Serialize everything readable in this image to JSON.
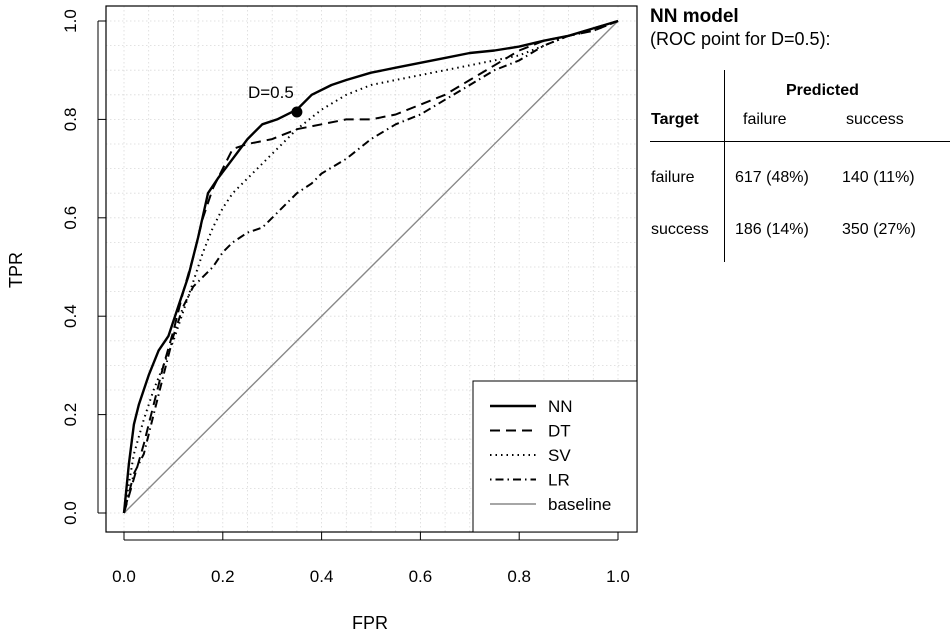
{
  "chart_data": {
    "type": "line",
    "xlabel": "FPR",
    "ylabel": "TPR",
    "xlim": [
      0,
      1
    ],
    "ylim": [
      0,
      1
    ],
    "xticks": [
      "0.0",
      "0.2",
      "0.4",
      "0.6",
      "0.8",
      "1.0"
    ],
    "yticks": [
      "0.0",
      "0.2",
      "0.4",
      "0.6",
      "0.8",
      "1.0"
    ],
    "grid": true,
    "legend_position": "bottom-right",
    "series": [
      {
        "name": "NN",
        "style": "solid",
        "x": [
          0,
          0.01,
          0.02,
          0.03,
          0.05,
          0.07,
          0.09,
          0.11,
          0.13,
          0.15,
          0.17,
          0.19,
          0.22,
          0.25,
          0.28,
          0.31,
          0.35,
          0.38,
          0.42,
          0.45,
          0.5,
          0.55,
          0.6,
          0.65,
          0.7,
          0.75,
          0.8,
          0.85,
          0.9,
          0.95,
          1.0
        ],
        "y": [
          0,
          0.1,
          0.18,
          0.22,
          0.28,
          0.33,
          0.36,
          0.42,
          0.48,
          0.56,
          0.65,
          0.68,
          0.72,
          0.76,
          0.79,
          0.8,
          0.82,
          0.85,
          0.87,
          0.88,
          0.895,
          0.905,
          0.915,
          0.925,
          0.935,
          0.94,
          0.948,
          0.96,
          0.97,
          0.985,
          1.0
        ]
      },
      {
        "name": "DT",
        "style": "dashed",
        "x": [
          0,
          0.02,
          0.04,
          0.06,
          0.08,
          0.1,
          0.12,
          0.14,
          0.16,
          0.18,
          0.2,
          0.22,
          0.25,
          0.3,
          0.35,
          0.4,
          0.45,
          0.5,
          0.55,
          0.6,
          0.65,
          0.7,
          0.75,
          0.8,
          0.85,
          0.9,
          0.95,
          1.0
        ],
        "y": [
          0,
          0.07,
          0.14,
          0.22,
          0.3,
          0.37,
          0.45,
          0.52,
          0.6,
          0.66,
          0.7,
          0.74,
          0.75,
          0.76,
          0.78,
          0.79,
          0.8,
          0.8,
          0.81,
          0.83,
          0.85,
          0.88,
          0.91,
          0.94,
          0.96,
          0.97,
          0.98,
          1.0
        ]
      },
      {
        "name": "SV",
        "style": "dotted",
        "x": [
          0,
          0.02,
          0.04,
          0.06,
          0.08,
          0.1,
          0.12,
          0.14,
          0.16,
          0.18,
          0.2,
          0.22,
          0.25,
          0.3,
          0.35,
          0.4,
          0.45,
          0.5,
          0.55,
          0.6,
          0.65,
          0.7,
          0.75,
          0.8,
          0.85,
          0.9,
          0.95,
          1.0
        ],
        "y": [
          0,
          0.12,
          0.19,
          0.25,
          0.3,
          0.35,
          0.41,
          0.47,
          0.53,
          0.58,
          0.62,
          0.65,
          0.68,
          0.73,
          0.78,
          0.82,
          0.85,
          0.87,
          0.88,
          0.89,
          0.9,
          0.91,
          0.92,
          0.93,
          0.95,
          0.97,
          0.98,
          1.0
        ]
      },
      {
        "name": "LR",
        "style": "dotdash",
        "x": [
          0,
          0.02,
          0.04,
          0.06,
          0.08,
          0.1,
          0.12,
          0.14,
          0.16,
          0.18,
          0.2,
          0.22,
          0.25,
          0.28,
          0.3,
          0.33,
          0.35,
          0.38,
          0.4,
          0.45,
          0.5,
          0.55,
          0.6,
          0.65,
          0.7,
          0.75,
          0.8,
          0.85,
          0.9,
          0.95,
          1.0
        ],
        "y": [
          0,
          0.08,
          0.12,
          0.2,
          0.28,
          0.36,
          0.42,
          0.46,
          0.48,
          0.5,
          0.53,
          0.55,
          0.57,
          0.58,
          0.6,
          0.63,
          0.65,
          0.67,
          0.69,
          0.72,
          0.76,
          0.79,
          0.81,
          0.84,
          0.87,
          0.9,
          0.92,
          0.95,
          0.97,
          0.985,
          1.0
        ]
      },
      {
        "name": "baseline",
        "style": "solid-gray",
        "color": "#888888",
        "x": [
          0,
          1
        ],
        "y": [
          0,
          1
        ]
      }
    ],
    "annotations": [
      {
        "text": "D=0.5",
        "x": 0.35,
        "y": 0.815
      }
    ]
  },
  "side_panel": {
    "title": "NN model",
    "subtitle": "(ROC point for D=0.5):",
    "confusion_matrix": {
      "predicted_label": "Predicted",
      "target_label": "Target",
      "columns": [
        "failure",
        "success"
      ],
      "rows": [
        {
          "label": "failure",
          "cells": [
            "617 (48%)",
            "140 (11%)"
          ]
        },
        {
          "label": "success",
          "cells": [
            "186 (14%)",
            "350 (27%)"
          ]
        }
      ]
    }
  }
}
